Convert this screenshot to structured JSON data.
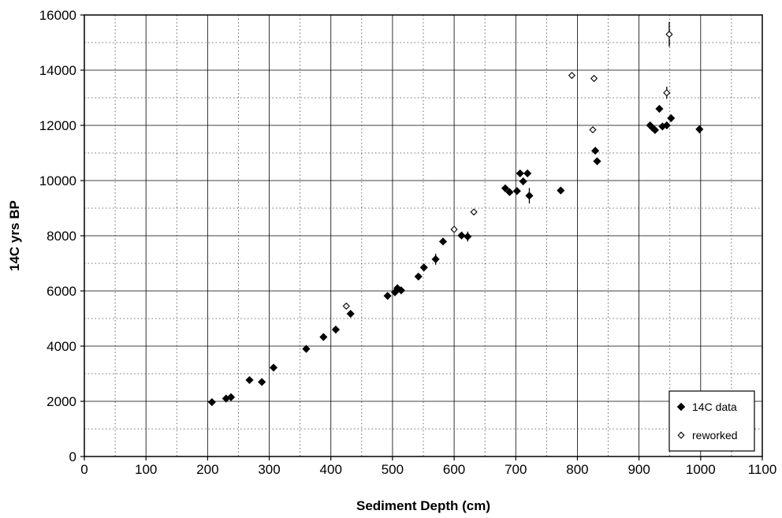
{
  "chart_data": {
    "type": "scatter",
    "title": "",
    "xlabel": "Sediment Depth (cm)",
    "ylabel": "14C yrs BP",
    "xlim": [
      0,
      1100
    ],
    "ylim": [
      0,
      16000
    ],
    "x_ticks": [
      "0",
      "100",
      "200",
      "300",
      "400",
      "500",
      "600",
      "700",
      "800",
      "900",
      "1000",
      "1100"
    ],
    "y_ticks": [
      "0",
      "2000",
      "4000",
      "6000",
      "8000",
      "10000",
      "12000",
      "14000",
      "16000"
    ],
    "grid": "major solid, minor dotted",
    "legend_position": "bottom-right",
    "colors": {
      "c14": "#000000",
      "reworked": "#ffffff"
    },
    "series": [
      {
        "name": "14C data",
        "marker": "filled-diamond",
        "points": [
          {
            "x": 207,
            "y": 1970
          },
          {
            "x": 230,
            "y": 2100
          },
          {
            "x": 238,
            "y": 2150
          },
          {
            "x": 268,
            "y": 2770
          },
          {
            "x": 288,
            "y": 2700
          },
          {
            "x": 307,
            "y": 3220
          },
          {
            "x": 360,
            "y": 3900
          },
          {
            "x": 388,
            "y": 4330
          },
          {
            "x": 408,
            "y": 4600
          },
          {
            "x": 432,
            "y": 5170
          },
          {
            "x": 492,
            "y": 5820
          },
          {
            "x": 504,
            "y": 5950
          },
          {
            "x": 508,
            "y": 6100
          },
          {
            "x": 514,
            "y": 6020
          },
          {
            "x": 542,
            "y": 6520
          },
          {
            "x": 551,
            "y": 6850
          },
          {
            "x": 570,
            "y": 7150,
            "err": 200
          },
          {
            "x": 582,
            "y": 7790
          },
          {
            "x": 612,
            "y": 8010
          },
          {
            "x": 622,
            "y": 7970,
            "err": 180
          },
          {
            "x": 683,
            "y": 9720
          },
          {
            "x": 690,
            "y": 9580
          },
          {
            "x": 702,
            "y": 9620
          },
          {
            "x": 707,
            "y": 10260
          },
          {
            "x": 712,
            "y": 9970
          },
          {
            "x": 719,
            "y": 10260
          },
          {
            "x": 722,
            "y": 9450,
            "err": 280
          },
          {
            "x": 773,
            "y": 9640
          },
          {
            "x": 829,
            "y": 11080
          },
          {
            "x": 832,
            "y": 10700
          },
          {
            "x": 918,
            "y": 12000
          },
          {
            "x": 922,
            "y": 11910
          },
          {
            "x": 926,
            "y": 11830
          },
          {
            "x": 933,
            "y": 12600
          },
          {
            "x": 938,
            "y": 11960
          },
          {
            "x": 945,
            "y": 12000
          },
          {
            "x": 952,
            "y": 12260
          },
          {
            "x": 998,
            "y": 11860,
            "err": 150
          }
        ]
      },
      {
        "name": "reworked",
        "marker": "open-diamond",
        "points": [
          {
            "x": 425,
            "y": 5450
          },
          {
            "x": 600,
            "y": 8230
          },
          {
            "x": 632,
            "y": 8860
          },
          {
            "x": 791,
            "y": 13810
          },
          {
            "x": 825,
            "y": 11840
          },
          {
            "x": 827,
            "y": 13700
          },
          {
            "x": 945,
            "y": 13180,
            "err": 220
          },
          {
            "x": 949,
            "y": 15300,
            "err": 450
          }
        ]
      }
    ]
  }
}
